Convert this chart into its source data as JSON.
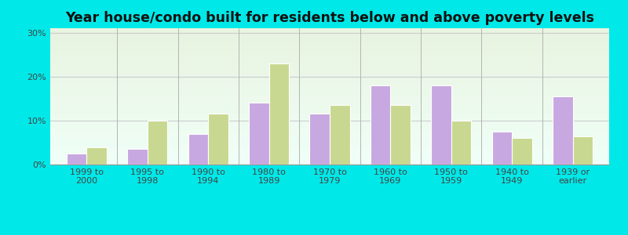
{
  "title": "Year house/condo built for residents below and above poverty levels",
  "categories": [
    "1999 to\n2000",
    "1995 to\n1998",
    "1990 to\n1994",
    "1980 to\n1989",
    "1970 to\n1979",
    "1960 to\n1969",
    "1950 to\n1959",
    "1940 to\n1949",
    "1939 or\nearlier"
  ],
  "below_poverty": [
    2.5,
    3.5,
    7.0,
    14.0,
    11.5,
    18.0,
    18.0,
    7.5,
    15.5
  ],
  "above_poverty": [
    4.0,
    10.0,
    11.5,
    23.0,
    13.5,
    13.5,
    10.0,
    6.0,
    6.5
  ],
  "below_color": "#c8a8e0",
  "above_color": "#c8d890",
  "bg_color_top": "#e8f4e0",
  "bg_color_bottom": "#f0fff8",
  "outer_bg": "#00e8e8",
  "ylim": [
    0,
    31
  ],
  "yticks": [
    0,
    10,
    20,
    30
  ],
  "ytick_labels": [
    "0%",
    "10%",
    "20%",
    "30%"
  ],
  "title_fontsize": 12.5,
  "tick_fontsize": 8,
  "legend_fontsize": 9
}
